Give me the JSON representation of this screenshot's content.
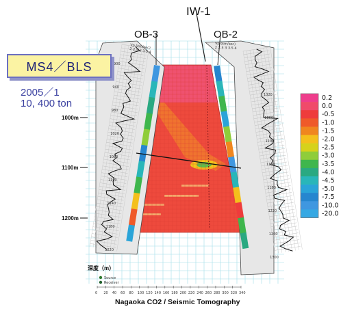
{
  "figure": {
    "well_labels": {
      "injection": "IW-1",
      "left_obs": "OB-3",
      "right_obs": "OB-2"
    },
    "scenario_label": "MS4／BLS",
    "date_text": "2005／1",
    "amount_text": "10, 400 ton",
    "bottom_title": "Nagaoka CO2 / Seismic Tomography",
    "depth_axis_label": "深度（m）",
    "vp_header": "Vp (km/sec)",
    "vp_ticks": "2 2.5 3 3.5 4",
    "legend_markers": [
      {
        "label": "Source",
        "color": "#2f7a2f"
      },
      {
        "label": "Receiver",
        "color": "#1f5f2a"
      }
    ],
    "depth_labels": [
      {
        "label": "1000m",
        "depth": 1000
      },
      {
        "label": "1100m",
        "depth": 1100
      },
      {
        "label": "1200m",
        "depth": 1200
      }
    ],
    "left_log_depths": [
      "900",
      "940",
      "980",
      "1020",
      "1060",
      "1100",
      "1140",
      "1180",
      "1220"
    ],
    "right_log_depths": [
      "1020",
      "1060",
      "1100",
      "1140",
      "1180",
      "1220",
      "1260",
      "1300"
    ],
    "x_axis_ticks": [
      "0",
      "20",
      "40",
      "60",
      "80",
      "100",
      "120",
      "140",
      "160",
      "180",
      "200",
      "220",
      "240",
      "260",
      "280",
      "300",
      "320",
      "340"
    ],
    "colorbar": {
      "labels": [
        "0.2",
        "0.0",
        "-0.5",
        "-1.0",
        "-1.5",
        "-2.0",
        "-2.5",
        "-3.0",
        "-3.5",
        "-4.0",
        "-4.5",
        "-5.0",
        "-7.5",
        "-10.0",
        "-20.0"
      ],
      "colors": [
        "#ef3d8c",
        "#f04a6a",
        "#ee3c3c",
        "#ef5a2a",
        "#f0861f",
        "#f4c01c",
        "#d6d21b",
        "#8fcd3a",
        "#3fb64d",
        "#2aa981",
        "#29b6b9",
        "#2aa4d8",
        "#2686cf",
        "#3f97e0",
        "#36a8e3"
      ]
    }
  }
}
